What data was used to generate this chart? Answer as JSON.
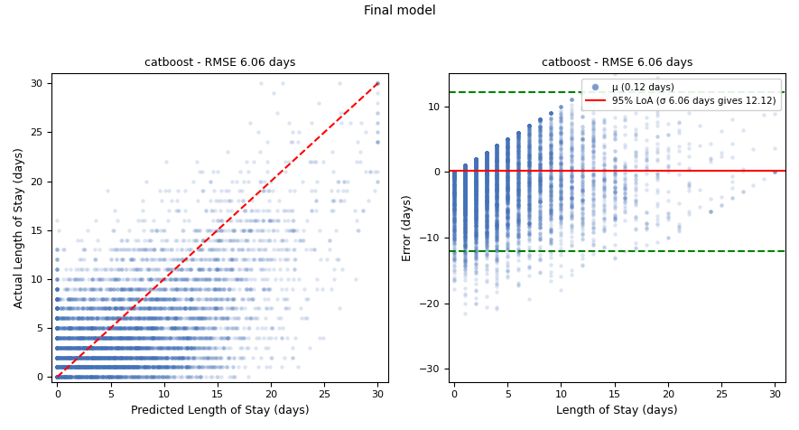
{
  "title": "Final model",
  "left_title": "catboost - RMSE 6.06 days",
  "right_title": "catboost - RMSE 6.06 days",
  "left_xlabel": "Predicted Length of Stay (days)",
  "left_ylabel": "Actual Length of Stay (days)",
  "right_xlabel": "Length of Stay (days)",
  "right_ylabel": "Error (days)",
  "xlim_left": [
    -0.5,
    31
  ],
  "ylim_left": [
    -0.5,
    31
  ],
  "xlim_right": [
    -0.5,
    31
  ],
  "ylim_right": [
    -32,
    15
  ],
  "mu": 0.12,
  "sigma": 6.06,
  "loa": 12.12,
  "legend_mu_label": "μ (0.12 days)",
  "legend_loa_label": "95% LoA (σ 6.06 days gives 12.12)",
  "seed": 42,
  "n_samples": 8000,
  "max_los": 30,
  "scatter_color": "#4472b8",
  "scatter_alpha": 0.18,
  "scatter_size": 10,
  "line_color": "red",
  "dashed_line_color": "green",
  "background_color": "#ffffff",
  "title_fontsize": 10,
  "subtitle_fontsize": 9,
  "axis_label_fontsize": 9,
  "tick_fontsize": 8,
  "legend_fontsize": 7.5
}
